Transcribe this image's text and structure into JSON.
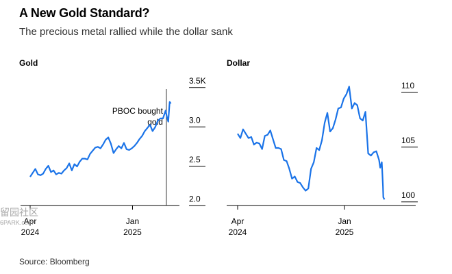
{
  "header": {
    "title": "A New Gold Standard?",
    "subtitle": "The precious metal rallied while the dollar sank"
  },
  "footer": {
    "source": "Source: Bloomberg"
  },
  "watermark": {
    "text": "留园社区",
    "sub": "6PARK.com"
  },
  "colors": {
    "line": "#1a73e8",
    "axis": "#000000",
    "text": "#000000"
  },
  "chart_data": [
    {
      "type": "line",
      "title": "Gold",
      "xlabel": "",
      "ylabel": "",
      "x_axis_type": "date",
      "xlim": [
        "2024-04-01",
        "2025-04-15"
      ],
      "ylim": [
        1.95,
        3.55
      ],
      "y_ticks": [
        {
          "value": 3.5,
          "label": "3.5K"
        },
        {
          "value": 3.0,
          "label": "3.0"
        },
        {
          "value": 2.5,
          "label": "2.5"
        },
        {
          "value": 2.0,
          "label": "2.0"
        }
      ],
      "x_ticks": [
        {
          "date": "2024-04-01",
          "label": "Apr",
          "sublabel": "2024"
        },
        {
          "date": "2025-01-01",
          "label": "Jan",
          "sublabel": "2025"
        }
      ],
      "annotation": {
        "date": "2025-04-02",
        "lines": [
          "PBOC bought",
          "gold"
        ]
      },
      "series": [
        {
          "values": [
            [
              "2024-04-01",
              2.28
            ],
            [
              "2024-04-08",
              2.33
            ],
            [
              "2024-04-15",
              2.38
            ],
            [
              "2024-04-22",
              2.31
            ],
            [
              "2024-04-29",
              2.3
            ],
            [
              "2024-05-06",
              2.32
            ],
            [
              "2024-05-13",
              2.38
            ],
            [
              "2024-05-20",
              2.42
            ],
            [
              "2024-05-27",
              2.34
            ],
            [
              "2024-06-03",
              2.36
            ],
            [
              "2024-06-10",
              2.31
            ],
            [
              "2024-06-17",
              2.33
            ],
            [
              "2024-06-24",
              2.32
            ],
            [
              "2024-07-01",
              2.36
            ],
            [
              "2024-07-08",
              2.39
            ],
            [
              "2024-07-15",
              2.45
            ],
            [
              "2024-07-22",
              2.36
            ],
            [
              "2024-07-29",
              2.44
            ],
            [
              "2024-08-05",
              2.41
            ],
            [
              "2024-08-12",
              2.47
            ],
            [
              "2024-08-19",
              2.51
            ],
            [
              "2024-08-26",
              2.51
            ],
            [
              "2024-09-02",
              2.5
            ],
            [
              "2024-09-09",
              2.57
            ],
            [
              "2024-09-16",
              2.61
            ],
            [
              "2024-09-23",
              2.65
            ],
            [
              "2024-09-30",
              2.66
            ],
            [
              "2024-10-07",
              2.64
            ],
            [
              "2024-10-14",
              2.69
            ],
            [
              "2024-10-21",
              2.75
            ],
            [
              "2024-10-28",
              2.78
            ],
            [
              "2024-11-04",
              2.7
            ],
            [
              "2024-11-11",
              2.58
            ],
            [
              "2024-11-18",
              2.63
            ],
            [
              "2024-11-25",
              2.67
            ],
            [
              "2024-12-02",
              2.64
            ],
            [
              "2024-12-09",
              2.71
            ],
            [
              "2024-12-16",
              2.63
            ],
            [
              "2024-12-23",
              2.62
            ],
            [
              "2024-12-30",
              2.64
            ],
            [
              "2025-01-06",
              2.67
            ],
            [
              "2025-01-13",
              2.71
            ],
            [
              "2025-01-20",
              2.76
            ],
            [
              "2025-01-27",
              2.8
            ],
            [
              "2025-02-03",
              2.86
            ],
            [
              "2025-02-10",
              2.9
            ],
            [
              "2025-02-17",
              2.94
            ],
            [
              "2025-02-24",
              2.86
            ],
            [
              "2025-03-03",
              2.91
            ],
            [
              "2025-03-10",
              2.99
            ],
            [
              "2025-03-17",
              3.02
            ],
            [
              "2025-03-24",
              3.02
            ],
            [
              "2025-03-31",
              3.12
            ],
            [
              "2025-04-03",
              3.05
            ],
            [
              "2025-04-07",
              2.98
            ],
            [
              "2025-04-10",
              3.18
            ],
            [
              "2025-04-11",
              3.23
            ],
            [
              "2025-04-14",
              3.21
            ]
          ]
        }
      ]
    },
    {
      "type": "line",
      "title": "Dollar",
      "xlabel": "",
      "ylabel": "",
      "x_axis_type": "date",
      "xlim": [
        "2024-04-01",
        "2025-04-15"
      ],
      "ylim": [
        99.3,
        110.8
      ],
      "y_ticks": [
        {
          "value": 110,
          "label": "110"
        },
        {
          "value": 105,
          "label": "105"
        },
        {
          "value": 100,
          "label": "100"
        }
      ],
      "x_ticks": [
        {
          "date": "2024-04-01",
          "label": "Apr",
          "sublabel": "2024"
        },
        {
          "date": "2025-01-01",
          "label": "Jan",
          "sublabel": "2025"
        }
      ],
      "series": [
        {
          "values": [
            [
              "2024-04-01",
              105.6
            ],
            [
              "2024-04-08",
              105.2
            ],
            [
              "2024-04-15",
              106.0
            ],
            [
              "2024-04-22",
              105.6
            ],
            [
              "2024-04-29",
              105.2
            ],
            [
              "2024-05-06",
              105.3
            ],
            [
              "2024-05-13",
              104.6
            ],
            [
              "2024-05-20",
              104.8
            ],
            [
              "2024-05-27",
              104.7
            ],
            [
              "2024-06-03",
              104.2
            ],
            [
              "2024-06-10",
              105.4
            ],
            [
              "2024-06-17",
              105.5
            ],
            [
              "2024-06-24",
              105.9
            ],
            [
              "2024-07-01",
              105.1
            ],
            [
              "2024-07-08",
              104.3
            ],
            [
              "2024-07-15",
              104.3
            ],
            [
              "2024-07-22",
              104.2
            ],
            [
              "2024-07-29",
              103.2
            ],
            [
              "2024-08-05",
              103.1
            ],
            [
              "2024-08-12",
              102.4
            ],
            [
              "2024-08-19",
              101.5
            ],
            [
              "2024-08-26",
              101.7
            ],
            [
              "2024-09-02",
              101.2
            ],
            [
              "2024-09-09",
              101.1
            ],
            [
              "2024-09-16",
              100.7
            ],
            [
              "2024-09-23",
              100.4
            ],
            [
              "2024-09-30",
              100.6
            ],
            [
              "2024-10-07",
              102.4
            ],
            [
              "2024-10-14",
              103.0
            ],
            [
              "2024-10-21",
              104.3
            ],
            [
              "2024-10-28",
              104.1
            ],
            [
              "2024-11-04",
              105.0
            ],
            [
              "2024-11-11",
              106.6
            ],
            [
              "2024-11-18",
              107.5
            ],
            [
              "2024-11-25",
              105.8
            ],
            [
              "2024-12-02",
              106.1
            ],
            [
              "2024-12-09",
              106.9
            ],
            [
              "2024-12-16",
              107.9
            ],
            [
              "2024-12-23",
              108.0
            ],
            [
              "2024-12-30",
              108.8
            ],
            [
              "2025-01-06",
              109.2
            ],
            [
              "2025-01-13",
              109.9
            ],
            [
              "2025-01-20",
              107.9
            ],
            [
              "2025-01-27",
              108.4
            ],
            [
              "2025-02-03",
              108.2
            ],
            [
              "2025-02-10",
              107.0
            ],
            [
              "2025-02-17",
              106.8
            ],
            [
              "2025-02-24",
              107.6
            ],
            [
              "2025-03-03",
              103.8
            ],
            [
              "2025-03-10",
              103.6
            ],
            [
              "2025-03-17",
              103.9
            ],
            [
              "2025-03-24",
              104.0
            ],
            [
              "2025-03-31",
              103.2
            ],
            [
              "2025-04-03",
              102.5
            ],
            [
              "2025-04-07",
              103.0
            ],
            [
              "2025-04-10",
              100.8
            ],
            [
              "2025-04-11",
              99.8
            ],
            [
              "2025-04-14",
              99.6
            ]
          ]
        }
      ]
    }
  ]
}
